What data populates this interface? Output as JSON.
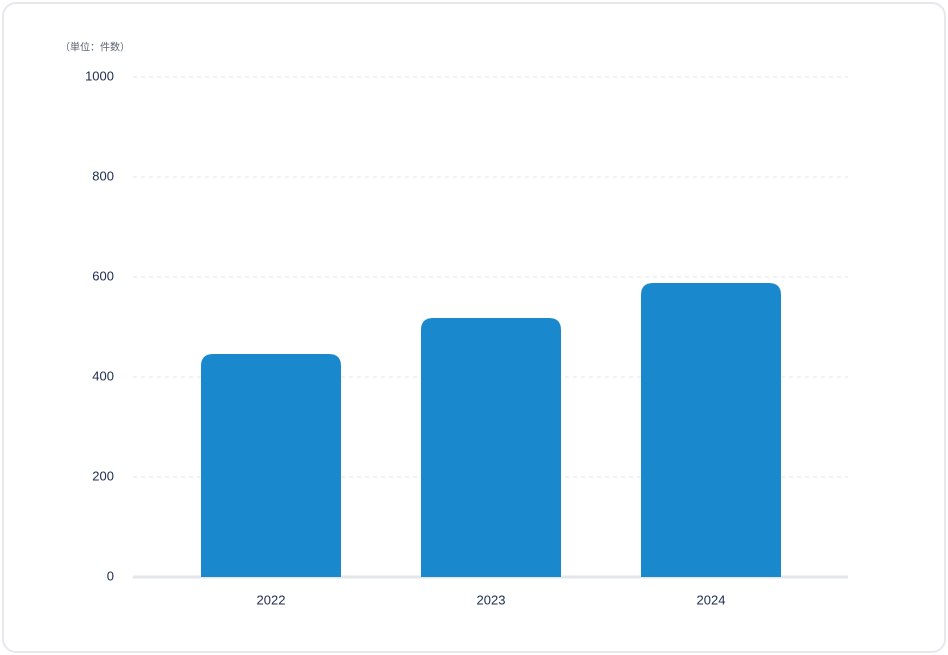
{
  "chart_data": {
    "type": "bar",
    "y_label": "（単位：件数）",
    "categories": [
      "2022",
      "2023",
      "2024"
    ],
    "values": [
      446,
      518,
      588
    ],
    "color": "#1a88cc",
    "ylim": [
      0,
      1000
    ],
    "yticks": [
      0,
      200,
      400,
      600,
      800,
      1000
    ],
    "grid": true
  }
}
